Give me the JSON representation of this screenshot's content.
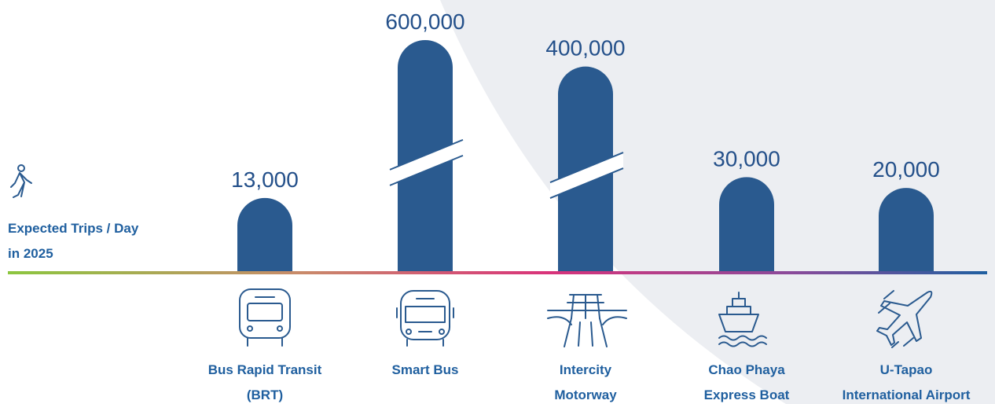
{
  "chart_data": {
    "type": "bar",
    "y_label": [
      "Expected Trips / Day",
      "in 2025"
    ],
    "categories": [
      [
        "Bus Rapid Transit",
        "(BRT)"
      ],
      [
        "Smart Bus"
      ],
      [
        "Intercity",
        "Motorway"
      ],
      [
        "Chao Phaya",
        "Express Boat"
      ],
      [
        "U-Tapao",
        "International Airport"
      ]
    ],
    "values": [
      13000,
      600000,
      400000,
      30000,
      20000
    ],
    "value_labels": [
      "13,000",
      "600,000",
      "400,000",
      "30,000",
      "20,000"
    ],
    "color": "#2a5a8f"
  }
}
